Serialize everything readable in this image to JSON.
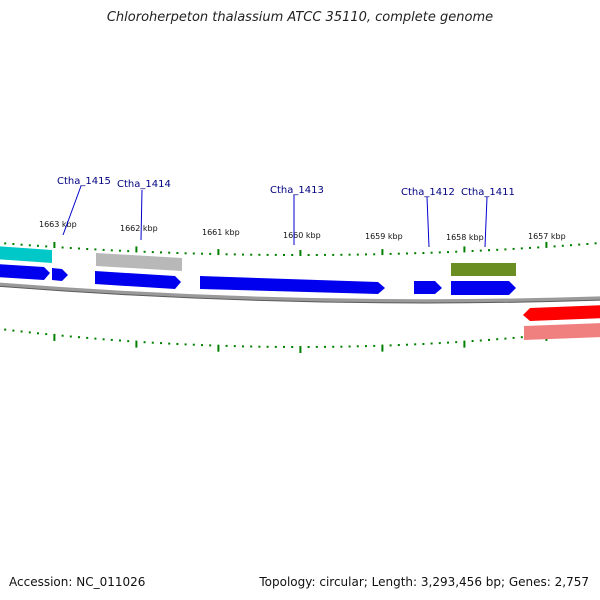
{
  "title": "Chloroherpeton thalassium ATCC 35110, complete genome",
  "footer": {
    "accession": "Accession: NC_011026",
    "summary": "Topology: circular; Length: 3,293,456 bp; Genes: 2,757"
  },
  "colors": {
    "backbone": "#808080",
    "tick": "#008000",
    "gene_blue": "#0000ee",
    "gene_cyan": "#00c8c8",
    "gene_gray": "#b4b4b4",
    "gene_olive": "#6b8e23",
    "gene_red": "#ff0000",
    "gene_pink": "#f08080",
    "label_color": "#000080"
  },
  "scale_labels": [
    "1663 kbp",
    "1662 kbp",
    "1661 kbp",
    "1660 kbp",
    "1659 kbp",
    "1658 kbp",
    "1657 kbp"
  ],
  "gene_labels": [
    "Ctha_1415",
    "Ctha_1414",
    "Ctha_1413",
    "Ctha_1412",
    "Ctha_1411"
  ]
}
